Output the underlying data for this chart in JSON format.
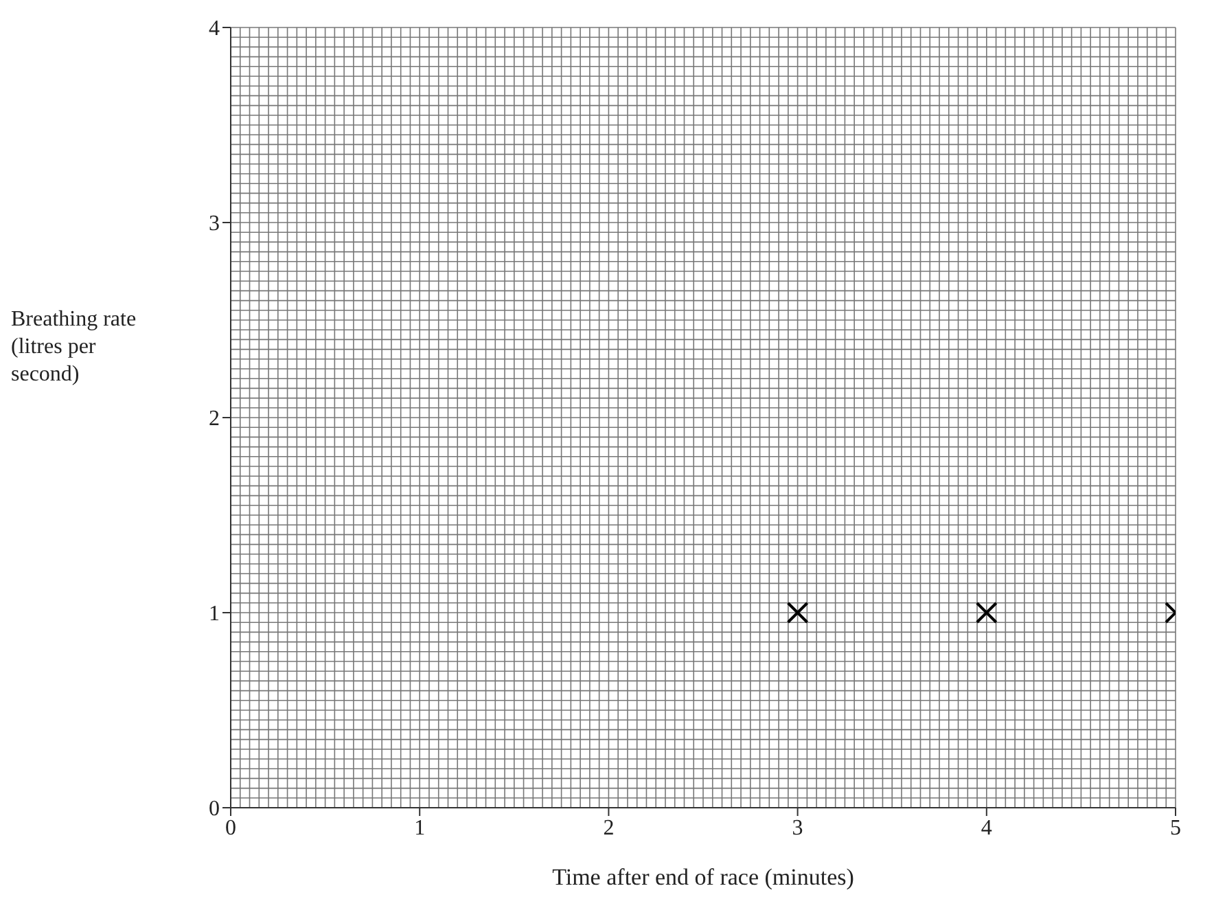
{
  "chart_data": {
    "type": "scatter",
    "xlabel": "Time after end of race (minutes)",
    "ylabel": "Breathing rate (litres per second)",
    "x": [
      3,
      4,
      5
    ],
    "series": [
      {
        "color": "#000000",
        "values": [
          1,
          1,
          1
        ]
      }
    ],
    "xlim": [
      0,
      5
    ],
    "xticks": [
      0,
      1,
      2,
      3,
      4,
      5
    ],
    "ylim": [
      0,
      4
    ],
    "yticks": [
      0,
      1,
      2,
      3,
      4
    ],
    "grid": true,
    "marker": "cross"
  }
}
